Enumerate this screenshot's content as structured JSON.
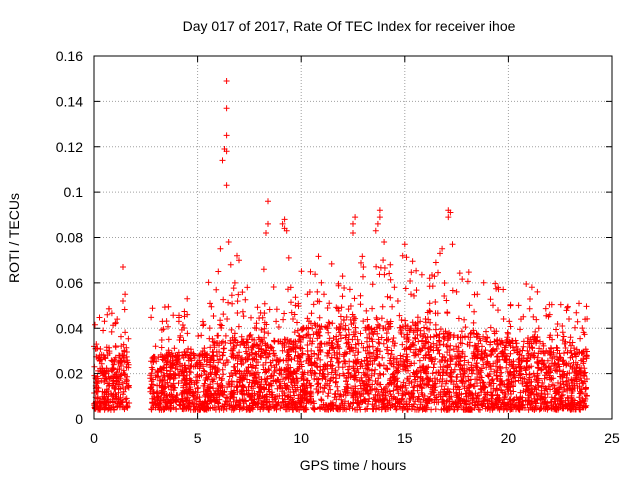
{
  "chart_data": {
    "type": "scatter",
    "title": "Day 017 of 2017, Rate Of TEC Index for receiver ihoe",
    "xlabel": "GPS time / hours",
    "ylabel": "ROTI / TECUs",
    "xlim": [
      0,
      25
    ],
    "ylim": [
      0,
      0.16
    ],
    "xticks": [
      "0",
      "5",
      "10",
      "15",
      "20",
      "25"
    ],
    "yticks": [
      "0",
      "0.02",
      "0.04",
      "0.06",
      "0.08",
      "0.1",
      "0.12",
      "0.14",
      "0.16"
    ],
    "grid": true,
    "marker": "+",
    "color": "#ff0000",
    "coverage": [
      [
        0.0,
        1.7
      ],
      [
        2.7,
        23.8
      ]
    ],
    "data_gap": [
      1.7,
      2.7
    ],
    "outliers": [
      [
        0.0,
        0.032
      ],
      [
        0.1,
        0.031
      ],
      [
        1.4,
        0.052
      ],
      [
        1.5,
        0.055
      ],
      [
        1.4,
        0.067
      ],
      [
        3.3,
        0.043
      ],
      [
        4.5,
        0.046
      ],
      [
        4.5,
        0.053
      ],
      [
        5.9,
        0.057
      ],
      [
        6.0,
        0.065
      ],
      [
        6.1,
        0.075
      ],
      [
        6.2,
        0.114
      ],
      [
        6.3,
        0.119
      ],
      [
        6.4,
        0.118
      ],
      [
        6.4,
        0.125
      ],
      [
        6.4,
        0.137
      ],
      [
        6.4,
        0.149
      ],
      [
        6.4,
        0.103
      ],
      [
        6.5,
        0.078
      ],
      [
        6.6,
        0.068
      ],
      [
        6.8,
        0.06
      ],
      [
        6.9,
        0.072
      ],
      [
        7.0,
        0.07
      ],
      [
        7.4,
        0.058
      ],
      [
        8.2,
        0.066
      ],
      [
        8.3,
        0.082
      ],
      [
        8.4,
        0.086
      ],
      [
        8.4,
        0.096
      ],
      [
        9.1,
        0.086
      ],
      [
        9.2,
        0.084
      ],
      [
        9.2,
        0.088
      ],
      [
        9.3,
        0.083
      ],
      [
        9.5,
        0.058
      ],
      [
        9.4,
        0.071
      ],
      [
        10.3,
        0.055
      ],
      [
        11.1,
        0.055
      ],
      [
        12.0,
        0.063
      ],
      [
        12.5,
        0.082
      ],
      [
        12.5,
        0.086
      ],
      [
        12.6,
        0.089
      ],
      [
        13.0,
        0.067
      ],
      [
        13.6,
        0.083
      ],
      [
        13.7,
        0.086
      ],
      [
        13.8,
        0.089
      ],
      [
        13.8,
        0.092
      ],
      [
        14.0,
        0.078
      ],
      [
        14.3,
        0.068
      ],
      [
        14.9,
        0.072
      ],
      [
        15.0,
        0.077
      ],
      [
        15.3,
        0.055
      ],
      [
        16.2,
        0.062
      ],
      [
        16.5,
        0.069
      ],
      [
        16.7,
        0.073
      ],
      [
        16.8,
        0.075
      ],
      [
        17.1,
        0.089
      ],
      [
        17.1,
        0.092
      ],
      [
        17.2,
        0.091
      ],
      [
        17.3,
        0.077
      ],
      [
        17.5,
        0.056
      ],
      [
        18.5,
        0.055
      ],
      [
        19.5,
        0.048
      ],
      [
        20.1,
        0.05
      ],
      [
        21.2,
        0.045
      ],
      [
        21.4,
        0.056
      ],
      [
        22.0,
        0.046
      ],
      [
        22.6,
        0.041
      ],
      [
        23.0,
        0.036
      ],
      [
        23.7,
        0.044
      ]
    ]
  }
}
